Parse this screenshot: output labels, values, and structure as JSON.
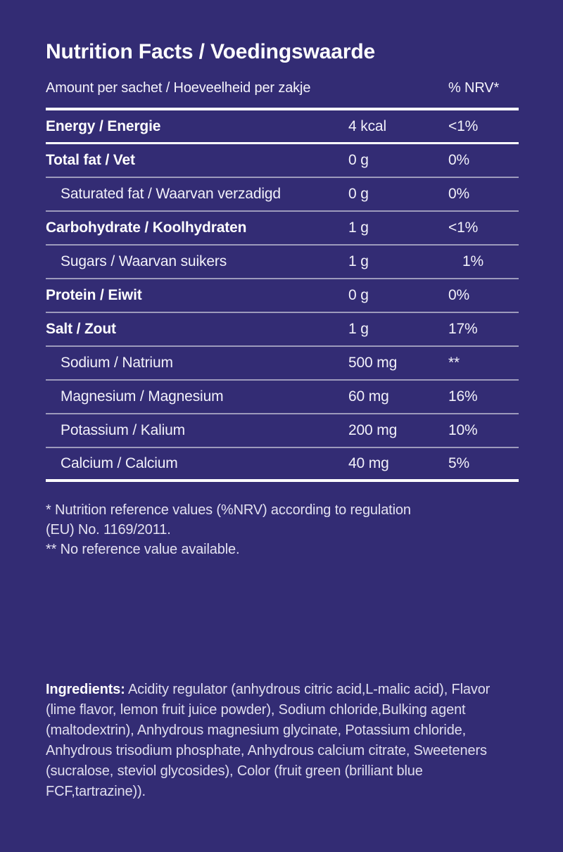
{
  "colors": {
    "background": "#332C74",
    "primary_text": "#FFFFFF",
    "secondary_text": "#E0DEEE",
    "thick_rule": "#FFFFFF",
    "thin_rule": "rgba(255,255,255,0.52)"
  },
  "header": {
    "title": "Nutrition Facts / Voedingswaarde",
    "amount_column_label": "Amount per sachet / Hoeveelheid per zakje",
    "nrv_column_label": "% NRV*"
  },
  "table": {
    "rows": [
      {
        "label": "Energy / Energie",
        "amount": "4 kcal",
        "nrv": "<1%",
        "bold": true,
        "indent": false,
        "divider": "thick",
        "nrv_shift": false
      },
      {
        "label": "Total fat / Vet",
        "amount": "0 g",
        "nrv": "0%",
        "bold": true,
        "indent": false,
        "divider": "thin",
        "nrv_shift": false
      },
      {
        "label": "Saturated fat / Waarvan verzadigd",
        "amount": "0 g",
        "nrv": "0%",
        "bold": false,
        "indent": true,
        "divider": "thin",
        "nrv_shift": false
      },
      {
        "label": "Carbohydrate / Koolhydraten",
        "amount": "1 g",
        "nrv": "<1%",
        "bold": true,
        "indent": false,
        "divider": "thin",
        "nrv_shift": false
      },
      {
        "label": "Sugars / Waarvan suikers",
        "amount": "1 g",
        "nrv": "1%",
        "bold": false,
        "indent": true,
        "divider": "thin",
        "nrv_shift": true
      },
      {
        "label": "Protein / Eiwit",
        "amount": "0 g",
        "nrv": "0%",
        "bold": true,
        "indent": false,
        "divider": "thin",
        "nrv_shift": false
      },
      {
        "label": "Salt / Zout",
        "amount": "1 g",
        "nrv": "17%",
        "bold": true,
        "indent": false,
        "divider": "thin",
        "nrv_shift": false
      },
      {
        "label": "Sodium / Natrium",
        "amount": "500 mg",
        "nrv": "**",
        "bold": false,
        "indent": true,
        "divider": "thin",
        "nrv_shift": false
      },
      {
        "label": "Magnesium / Magnesium",
        "amount": "60 mg",
        "nrv": "16%",
        "bold": false,
        "indent": true,
        "divider": "thin",
        "nrv_shift": false
      },
      {
        "label": "Potassium / Kalium",
        "amount": "200 mg",
        "nrv": "10%",
        "bold": false,
        "indent": true,
        "divider": "thin",
        "nrv_shift": false
      },
      {
        "label": "Calcium / Calcium",
        "amount": "40 mg",
        "nrv": "5%",
        "bold": false,
        "indent": true,
        "divider": "thicker",
        "nrv_shift": false
      }
    ]
  },
  "footnotes": [
    "* Nutrition reference values (%NRV) according to regulation",
    "(EU) No. 1169/2011.",
    "** No reference value available."
  ],
  "ingredients": {
    "label": "Ingredients:",
    "text": " Acidity regulator (anhydrous citric acid,L-malic acid), Flavor (lime flavor, lemon fruit juice powder), Sodium chloride,Bulking agent (maltodextrin), Anhydrous magnesium glycinate, Potassium chloride, Anhydrous trisodium phosphate, Anhydrous calcium citrate, Sweeteners (sucralose, steviol glycosides), Color (fruit green (brilliant blue FCF,tartrazine))."
  }
}
